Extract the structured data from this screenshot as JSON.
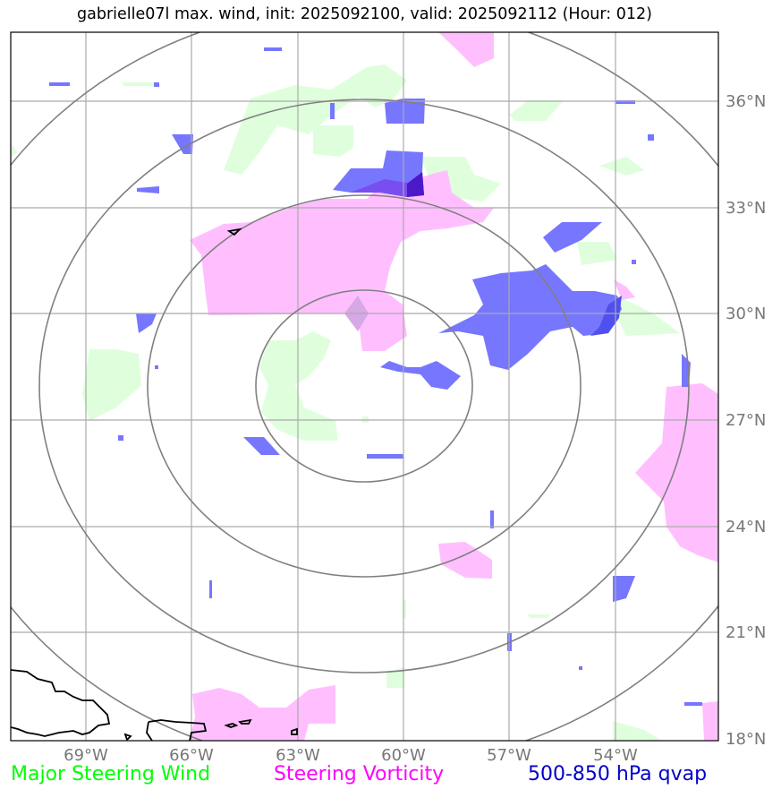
{
  "title": "gabrielle07l max. wind, init: 2025092100, valid: 2025092112 (Hour: 012)",
  "lat_labels": [
    "36°N",
    "33°N",
    "30°N",
    "27°N",
    "24°N",
    "21°N",
    "18°N"
  ],
  "lon_labels": [
    "69°W",
    "66°W",
    "63°W",
    "60°W",
    "57°W",
    "54°W"
  ],
  "legend": {
    "wind": "Major Steering Wind",
    "vorticity": "Steering Vorticity",
    "qvap": "500-850 hPa qvap"
  },
  "colors": {
    "wind": "#00ff00",
    "vorticity": "#ff00ff",
    "qvap": "#0000cc",
    "wind_fill": "#dfffdc",
    "vorticity_fill": "#ffbfff",
    "qvap_fill": "#7777ff",
    "grid": "#aaaaaa",
    "range_rings": "#808080"
  },
  "map": {
    "lat_range": [
      "18°N",
      "38°N"
    ],
    "lon_range": [
      "71°W",
      "51°W"
    ],
    "range_rings": 4,
    "coastlines": [
      "Hispaniola",
      "Puerto Rico"
    ]
  }
}
